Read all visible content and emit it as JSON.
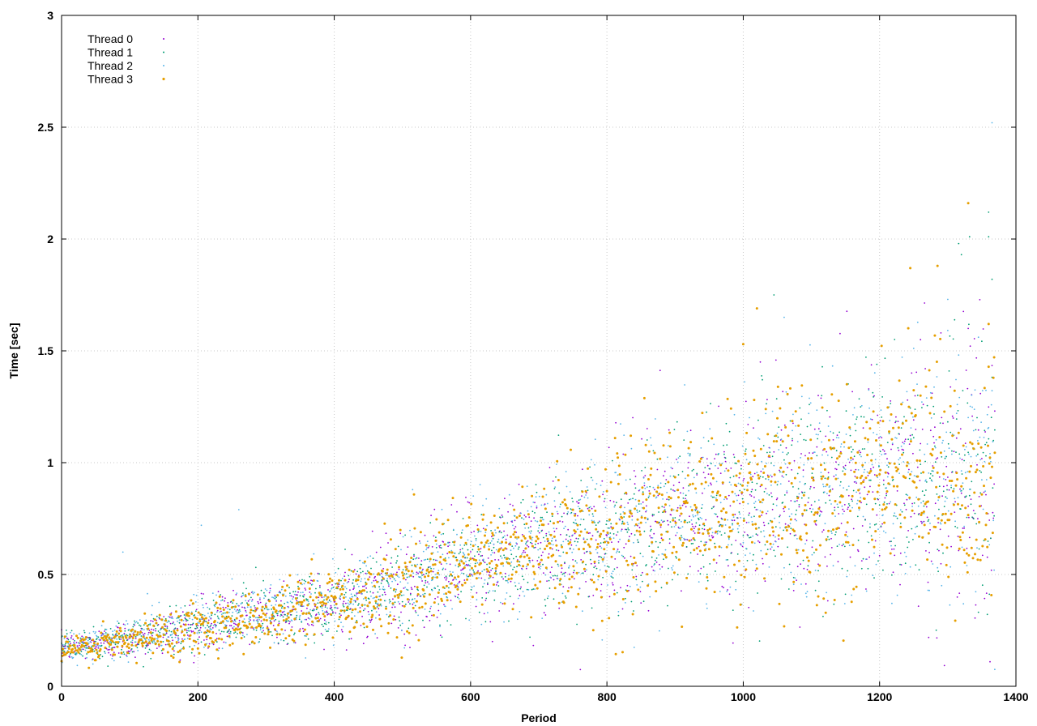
{
  "chart_data": {
    "type": "scatter",
    "title": "",
    "xlabel": "Period",
    "ylabel": "Time [sec]",
    "xlim": [
      0,
      1400
    ],
    "ylim": [
      0,
      3
    ],
    "xticks": [
      0,
      200,
      400,
      600,
      800,
      1000,
      1200,
      1400
    ],
    "yticks": [
      0,
      0.5,
      1,
      1.5,
      2,
      2.5,
      3
    ],
    "grid": true,
    "legend_position": "top-left",
    "n_points_per_series": 1370,
    "series": [
      {
        "name": "Thread 0",
        "color": "#9400d3",
        "marker": "dot",
        "trend": [
          [
            0,
            0.17
          ],
          [
            100,
            0.21
          ],
          [
            200,
            0.27
          ],
          [
            300,
            0.33
          ],
          [
            400,
            0.38
          ],
          [
            500,
            0.46
          ],
          [
            600,
            0.54
          ],
          [
            700,
            0.64
          ],
          [
            800,
            0.68
          ],
          [
            900,
            0.75
          ],
          [
            1000,
            0.82
          ],
          [
            1100,
            0.84
          ],
          [
            1200,
            0.92
          ],
          [
            1300,
            0.9
          ],
          [
            1370,
            0.85
          ]
        ],
        "spread": [
          [
            0,
            0.03
          ],
          [
            300,
            0.07
          ],
          [
            600,
            0.12
          ],
          [
            900,
            0.2
          ],
          [
            1200,
            0.26
          ],
          [
            1370,
            0.28
          ]
        ],
        "outliers": [
          [
            1025,
            1.45
          ],
          [
            1110,
            1.3
          ],
          [
            1260,
            1.55
          ],
          [
            1290,
            1.58
          ],
          [
            1330,
            1.6
          ]
        ]
      },
      {
        "name": "Thread 1",
        "color": "#009e73",
        "marker": "dot",
        "trend": [
          [
            0,
            0.17
          ],
          [
            100,
            0.21
          ],
          [
            200,
            0.27
          ],
          [
            300,
            0.33
          ],
          [
            400,
            0.38
          ],
          [
            500,
            0.46
          ],
          [
            600,
            0.54
          ],
          [
            700,
            0.63
          ],
          [
            800,
            0.68
          ],
          [
            900,
            0.75
          ],
          [
            1000,
            0.82
          ],
          [
            1100,
            0.85
          ],
          [
            1200,
            0.93
          ],
          [
            1300,
            0.92
          ],
          [
            1370,
            0.86
          ]
        ],
        "spread": [
          [
            0,
            0.03
          ],
          [
            300,
            0.07
          ],
          [
            600,
            0.12
          ],
          [
            900,
            0.2
          ],
          [
            1200,
            0.26
          ],
          [
            1370,
            0.28
          ]
        ],
        "outliers": [
          [
            1045,
            1.75
          ],
          [
            1320,
            1.93
          ],
          [
            1332,
            2.01
          ],
          [
            1360,
            2.12
          ],
          [
            1360,
            2.01
          ],
          [
            1365,
            1.82
          ]
        ]
      },
      {
        "name": "Thread 2",
        "color": "#56b4e9",
        "marker": "dot",
        "trend": [
          [
            0,
            0.17
          ],
          [
            100,
            0.22
          ],
          [
            200,
            0.28
          ],
          [
            300,
            0.34
          ],
          [
            400,
            0.39
          ],
          [
            500,
            0.47
          ],
          [
            600,
            0.55
          ],
          [
            700,
            0.64
          ],
          [
            800,
            0.69
          ],
          [
            900,
            0.76
          ],
          [
            1000,
            0.83
          ],
          [
            1100,
            0.86
          ],
          [
            1200,
            0.95
          ],
          [
            1300,
            0.94
          ],
          [
            1370,
            0.88
          ]
        ],
        "spread": [
          [
            0,
            0.03
          ],
          [
            300,
            0.07
          ],
          [
            600,
            0.12
          ],
          [
            900,
            0.2
          ],
          [
            1200,
            0.26
          ],
          [
            1370,
            0.28
          ]
        ],
        "outliers": [
          [
            90,
            0.6
          ],
          [
            205,
            0.72
          ],
          [
            260,
            0.79
          ],
          [
            1365,
            2.52
          ],
          [
            1060,
            1.65
          ],
          [
            1300,
            1.73
          ]
        ]
      },
      {
        "name": "Thread 3",
        "color": "#e69f00",
        "marker": "dot",
        "trend": [
          [
            0,
            0.16
          ],
          [
            100,
            0.2
          ],
          [
            200,
            0.27
          ],
          [
            300,
            0.31
          ],
          [
            400,
            0.38
          ],
          [
            500,
            0.46
          ],
          [
            600,
            0.54
          ],
          [
            700,
            0.63
          ],
          [
            800,
            0.68
          ],
          [
            900,
            0.75
          ],
          [
            1000,
            0.82
          ],
          [
            1100,
            0.85
          ],
          [
            1200,
            0.94
          ],
          [
            1300,
            0.9
          ],
          [
            1370,
            0.84
          ]
        ],
        "spread": [
          [
            0,
            0.03
          ],
          [
            300,
            0.07
          ],
          [
            600,
            0.12
          ],
          [
            900,
            0.2
          ],
          [
            1200,
            0.26
          ],
          [
            1370,
            0.28
          ]
        ],
        "outliers": [
          [
            1330,
            2.16
          ],
          [
            1245,
            1.87
          ],
          [
            1285,
            1.88
          ],
          [
            1020,
            1.69
          ],
          [
            1360,
            1.62
          ],
          [
            1000,
            1.53
          ]
        ]
      }
    ]
  }
}
